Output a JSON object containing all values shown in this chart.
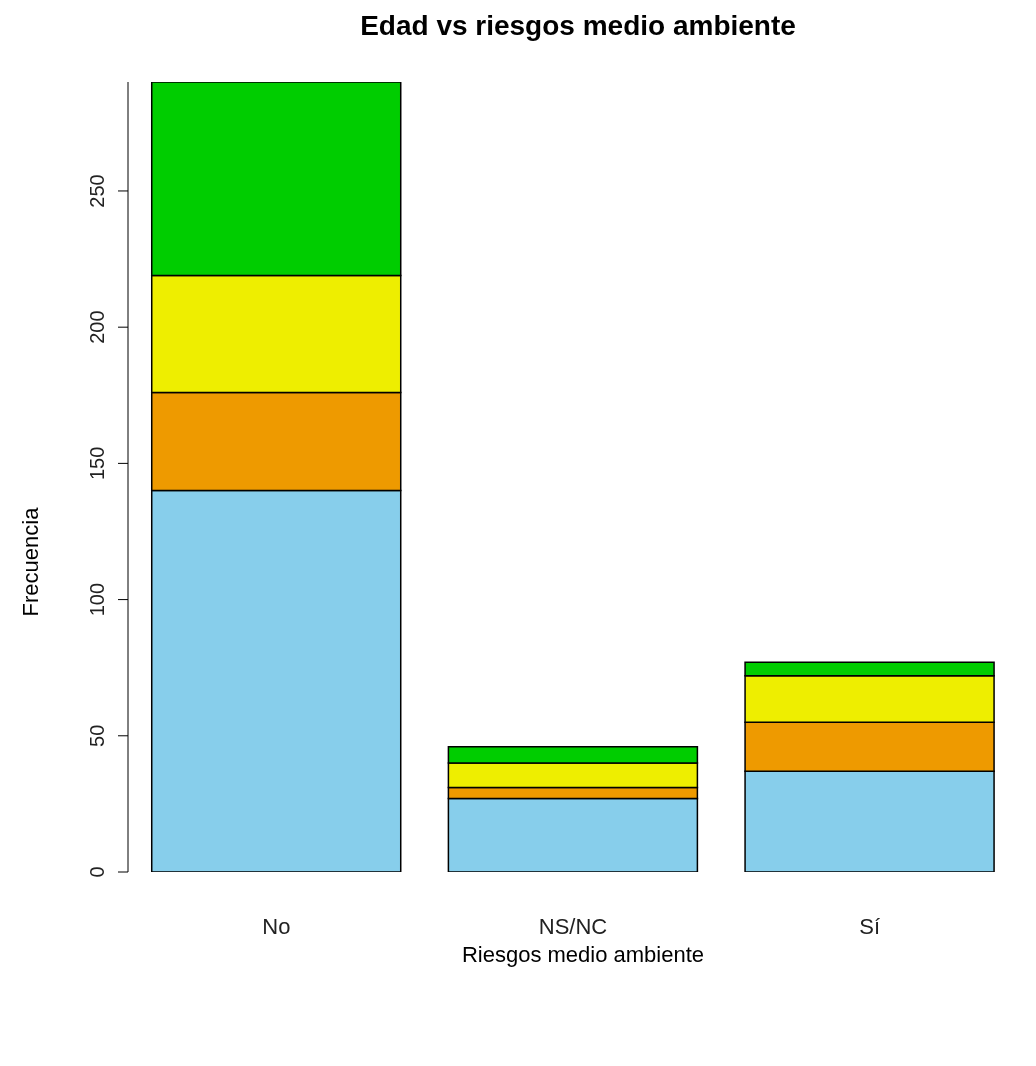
{
  "chart_data": {
    "type": "bar",
    "title": "Edad vs riesgos medio ambiente",
    "xlabel": "Riesgos medio ambiente",
    "ylabel": "Frecuencia",
    "categories": [
      "No",
      "NS/NC",
      "Sí"
    ],
    "stacked": true,
    "series": [
      {
        "color": "#87ceeb",
        "values": [
          140,
          27,
          37
        ]
      },
      {
        "color": "#ee9a00",
        "values": [
          36,
          4,
          18
        ]
      },
      {
        "color": "#eeee00",
        "values": [
          43,
          9,
          17
        ]
      },
      {
        "color": "#00cd00",
        "values": [
          71,
          6,
          5
        ]
      }
    ],
    "ylim": [
      0,
      290
    ],
    "yticks": [
      0,
      50,
      100,
      150,
      200,
      250
    ],
    "grid": false,
    "legend": false
  }
}
